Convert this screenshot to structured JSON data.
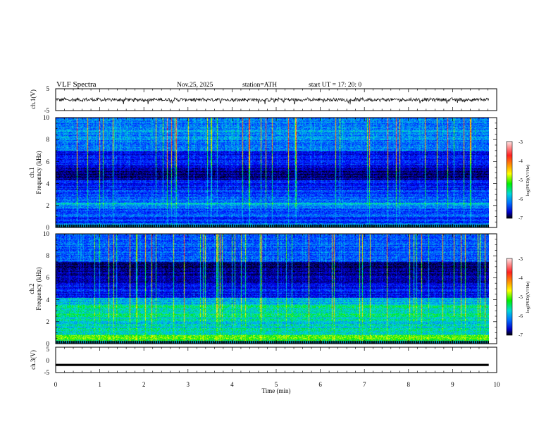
{
  "header": {
    "title": "VLF  Spectra",
    "date": "Nov.25, 2025",
    "station": "station=ATH",
    "start": "start  UT  =   17: 20: 0"
  },
  "chart_data": [
    {
      "type": "line",
      "title": "VLF  Spectra",
      "ylabel": "ch.1(V)",
      "ylim": [
        -5,
        5
      ],
      "yticks": [
        "5",
        "-5"
      ],
      "xlim": [
        0,
        10
      ],
      "series": [
        {
          "name": "ch.1 waveform",
          "amplitude": 1.2,
          "offset": 0,
          "x_end": 9.82
        }
      ]
    },
    {
      "type": "heatmap",
      "ylabel": "ch.1\nFrequency  (kHz)",
      "ylim": [
        0,
        10
      ],
      "yticks": [
        "0",
        "2",
        "4",
        "6",
        "8",
        "10"
      ],
      "xlim": [
        0,
        10
      ],
      "x_end": 9.82,
      "colorbar": {
        "label": "log(PSD)(V²/Hz)",
        "range": [
          -7,
          -3
        ],
        "ticks": [
          "-3",
          "-4",
          "-5",
          "-6",
          "-7"
        ]
      },
      "bands": [
        {
          "from": 0,
          "to": 0.3,
          "level": 0.0
        },
        {
          "from": 0.3,
          "to": 0.4,
          "level": 0.35
        },
        {
          "from": 0.4,
          "to": 1.0,
          "level": 0.25
        },
        {
          "from": 1.0,
          "to": 2.0,
          "level": 0.3
        },
        {
          "from": 2.0,
          "to": 2.3,
          "level": 0.42
        },
        {
          "from": 2.3,
          "to": 3.5,
          "level": 0.28
        },
        {
          "from": 3.5,
          "to": 4.3,
          "level": 0.2
        },
        {
          "from": 4.3,
          "to": 5.5,
          "level": 0.1
        },
        {
          "from": 5.5,
          "to": 7.0,
          "level": 0.2
        },
        {
          "from": 7.0,
          "to": 10.0,
          "level": 0.35
        }
      ]
    },
    {
      "type": "heatmap",
      "ylabel": "ch.2\nFrequency  (kHz)",
      "ylim": [
        0,
        10
      ],
      "yticks": [
        "0",
        "2",
        "4",
        "6",
        "8",
        "10"
      ],
      "xlim": [
        0,
        10
      ],
      "x_end": 9.82,
      "colorbar": {
        "label": "log(PSD)(V²/Hz)",
        "range": [
          -7,
          -3
        ],
        "ticks": [
          "-3",
          "-4",
          "-5",
          "-6",
          "-7"
        ]
      },
      "bands": [
        {
          "from": 0,
          "to": 0.3,
          "level": 0.0
        },
        {
          "from": 0.3,
          "to": 0.8,
          "level": 0.6
        },
        {
          "from": 0.8,
          "to": 2.0,
          "level": 0.45
        },
        {
          "from": 2.0,
          "to": 3.6,
          "level": 0.48
        },
        {
          "from": 3.6,
          "to": 4.2,
          "level": 0.4
        },
        {
          "from": 4.2,
          "to": 5.5,
          "level": 0.2
        },
        {
          "from": 5.5,
          "to": 6.2,
          "level": 0.15
        },
        {
          "from": 6.2,
          "to": 7.5,
          "level": 0.1
        },
        {
          "from": 7.5,
          "to": 10.0,
          "level": 0.3
        }
      ]
    },
    {
      "type": "line",
      "ylabel": "ch.3(V)",
      "ylim": [
        -5,
        5
      ],
      "yticks": [
        "5",
        "0",
        "-5"
      ],
      "xlim": [
        0,
        10
      ],
      "xlabel": "Time  (min)",
      "xticks": [
        "0",
        "1",
        "2",
        "3",
        "4",
        "5",
        "6",
        "7",
        "8",
        "9",
        "10"
      ],
      "series": [
        {
          "name": "ch.3 waveform",
          "constant": -2,
          "x_end": 9.82
        }
      ]
    }
  ]
}
